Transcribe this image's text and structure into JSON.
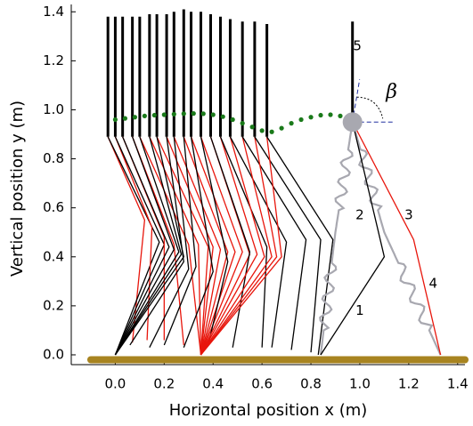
{
  "chart_data": {
    "type": "walker",
    "xlabel": "Horizontal position x (m)",
    "ylabel": "Vertical position y (m)",
    "xlim": [
      -0.18,
      1.43
    ],
    "ylim": [
      -0.04,
      1.43
    ],
    "xticks": [
      {
        "value": 0,
        "label": "0.0"
      },
      {
        "value": 0.2,
        "label": "0.2"
      },
      {
        "value": 0.4,
        "label": "0.4"
      },
      {
        "value": 0.6,
        "label": "0.6"
      },
      {
        "value": 0.8,
        "label": "0.8"
      },
      {
        "value": 1.0,
        "label": "1.0"
      },
      {
        "value": 1.2,
        "label": "1.2"
      },
      {
        "value": 1.4,
        "label": "1.4"
      }
    ],
    "yticks": [
      {
        "value": 0,
        "label": "0.0"
      },
      {
        "value": 0.2,
        "label": "0.2"
      },
      {
        "value": 0.4,
        "label": "0.4"
      },
      {
        "value": 0.6,
        "label": "0.6"
      },
      {
        "value": 0.8,
        "label": "0.8"
      },
      {
        "value": 1.0,
        "label": "1.0"
      },
      {
        "value": 1.2,
        "label": "1.2"
      },
      {
        "value": 1.4,
        "label": "1.4"
      }
    ],
    "ground": {
      "x": [
        -0.1,
        1.43
      ],
      "y": -0.02,
      "color": "#a88420"
    },
    "hip_y": 0.89,
    "frames": [
      {
        "hip": -0.03,
        "top": 1.38,
        "black": [
          0.18,
          0.46,
          0,
          0
        ],
        "red": [
          0.12,
          0.55,
          0.07,
          0.05
        ]
      },
      {
        "hip": 0.0,
        "top": 1.38,
        "black": [
          0.2,
          0.45,
          0,
          0
        ],
        "red": [
          0.15,
          0.52,
          0.13,
          0.06
        ]
      },
      {
        "hip": 0.03,
        "top": 1.38,
        "black": [
          0.22,
          0.44,
          0,
          0
        ],
        "red": [
          0.2,
          0.48,
          0.2,
          0.06
        ]
      },
      {
        "hip": 0.07,
        "top": 1.38,
        "black": [
          0.24,
          0.43,
          0,
          0
        ],
        "red": [
          0.24,
          0.45,
          0.28,
          0.04
        ]
      },
      {
        "hip": 0.1,
        "top": 1.38,
        "black": [
          0.26,
          0.42,
          0,
          0
        ],
        "red": [
          0.3,
          0.45,
          0.35,
          0
        ]
      },
      {
        "hip": 0.14,
        "top": 1.39,
        "black": [
          0.27,
          0.41,
          0,
          0
        ],
        "red": [
          0.34,
          0.45,
          0.35,
          0
        ]
      },
      {
        "hip": 0.17,
        "top": 1.39,
        "black": [
          0.28,
          0.4,
          0,
          0
        ],
        "red": [
          0.38,
          0.44,
          0.35,
          0
        ]
      },
      {
        "hip": 0.21,
        "top": 1.39,
        "black": [
          0.28,
          0.38,
          0.06,
          0.04
        ],
        "red": [
          0.4,
          0.44,
          0.35,
          0
        ]
      },
      {
        "hip": 0.24,
        "top": 1.4,
        "black": [
          0.3,
          0.35,
          0.14,
          0.03
        ],
        "red": [
          0.43,
          0.43,
          0.35,
          0
        ]
      },
      {
        "hip": 0.28,
        "top": 1.41,
        "black": [
          0.33,
          0.36,
          0.2,
          0.04
        ],
        "red": [
          0.46,
          0.42,
          0.35,
          0
        ]
      },
      {
        "hip": 0.31,
        "top": 1.4,
        "black": [
          0.4,
          0.34,
          0.28,
          0.03
        ],
        "red": [
          0.49,
          0.42,
          0.35,
          0
        ]
      },
      {
        "hip": 0.35,
        "top": 1.4,
        "black": [
          0.46,
          0.38,
          0.38,
          0.04
        ],
        "red": [
          0.52,
          0.42,
          0.35,
          0
        ]
      },
      {
        "hip": 0.39,
        "top": 1.39,
        "black": [
          0.55,
          0.42,
          0.48,
          0.03
        ],
        "red": [
          0.55,
          0.41,
          0.35,
          0
        ]
      },
      {
        "hip": 0.43,
        "top": 1.38,
        "black": [
          0.62,
          0.44,
          0.6,
          0.03
        ],
        "red": [
          0.58,
          0.41,
          0.35,
          0
        ]
      },
      {
        "hip": 0.47,
        "top": 1.37,
        "black": [
          0.7,
          0.46,
          0.64,
          0.03
        ],
        "red": [
          0.61,
          0.4,
          0.35,
          0
        ]
      },
      {
        "hip": 0.52,
        "top": 1.36,
        "black": [
          0.78,
          0.47,
          0.72,
          0.02
        ],
        "red": [
          0.64,
          0.4,
          0.35,
          0
        ]
      },
      {
        "hip": 0.57,
        "top": 1.36,
        "black": [
          0.84,
          0.47,
          0.8,
          0.01
        ],
        "red": [
          0.66,
          0.4,
          0.35,
          0
        ]
      },
      {
        "hip": 0.62,
        "top": 1.35,
        "black": [
          0.89,
          0.47,
          0.83,
          0
        ],
        "red": [
          0.68,
          0.4,
          0.35,
          0
        ]
      }
    ],
    "trajectory": {
      "color": "#1a7a1a",
      "x": [
        0,
        0.04,
        0.08,
        0.12,
        0.16,
        0.2,
        0.24,
        0.28,
        0.32,
        0.36,
        0.4,
        0.44,
        0.48,
        0.52,
        0.56,
        0.6,
        0.64,
        0.68,
        0.72,
        0.76,
        0.8,
        0.84,
        0.88,
        0.92
      ],
      "y": [
        0.96,
        0.965,
        0.97,
        0.975,
        0.978,
        0.98,
        0.982,
        0.984,
        0.985,
        0.984,
        0.98,
        0.972,
        0.96,
        0.945,
        0.93,
        0.915,
        0.91,
        0.925,
        0.945,
        0.96,
        0.97,
        0.978,
        0.98,
        0.975
      ]
    },
    "robot": {
      "hip": [
        0.97,
        0.95
      ],
      "top": 1.36,
      "leg1": [
        1.1,
        0.4,
        0.84,
        0
      ],
      "leg3": [
        1.22,
        0.47,
        1.33,
        0
      ],
      "spring2": [
        0.9,
        0.5,
        0.84,
        0
      ],
      "spring4": [
        1.1,
        0.5,
        1.33,
        0
      ]
    },
    "annotations": [
      {
        "text": "1",
        "x": 1.0,
        "y": 0.18
      },
      {
        "text": "2",
        "x": 1.0,
        "y": 0.57
      },
      {
        "text": "3",
        "x": 1.2,
        "y": 0.57
      },
      {
        "text": "4",
        "x": 1.3,
        "y": 0.29
      },
      {
        "text": "5",
        "x": 0.99,
        "y": 1.26
      },
      {
        "text": "β",
        "x": 1.13,
        "y": 1.07
      }
    ]
  }
}
